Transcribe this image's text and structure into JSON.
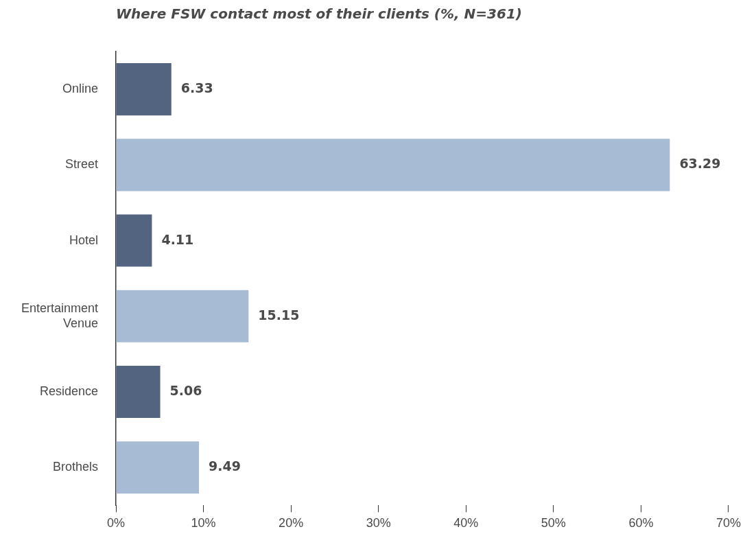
{
  "chart_data": {
    "type": "bar",
    "orientation": "horizontal",
    "title": "Where FSW contact most of their clients (%, N=361)",
    "categories": [
      "Online",
      "Street",
      "Hotel",
      "Entertainment Venue",
      "Residence",
      "Brothels"
    ],
    "values": [
      6.33,
      63.29,
      4.11,
      15.15,
      5.06,
      9.49
    ],
    "colors": [
      "#52647f",
      "#a8bbd4",
      "#52647f",
      "#a8bbd4",
      "#52647f",
      "#a8bbd4"
    ],
    "xlim": [
      0,
      70
    ],
    "xticks": [
      {
        "value": 0,
        "label": "0%"
      },
      {
        "value": 10,
        "label": "10%"
      },
      {
        "value": 20,
        "label": "20%"
      },
      {
        "value": 30,
        "label": "30%"
      },
      {
        "value": 40,
        "label": "40%"
      },
      {
        "value": 50,
        "label": "50%"
      },
      {
        "value": 60,
        "label": "60%"
      },
      {
        "value": 70,
        "label": "70%"
      }
    ],
    "data_labels": true,
    "grid": false,
    "legend": false
  }
}
